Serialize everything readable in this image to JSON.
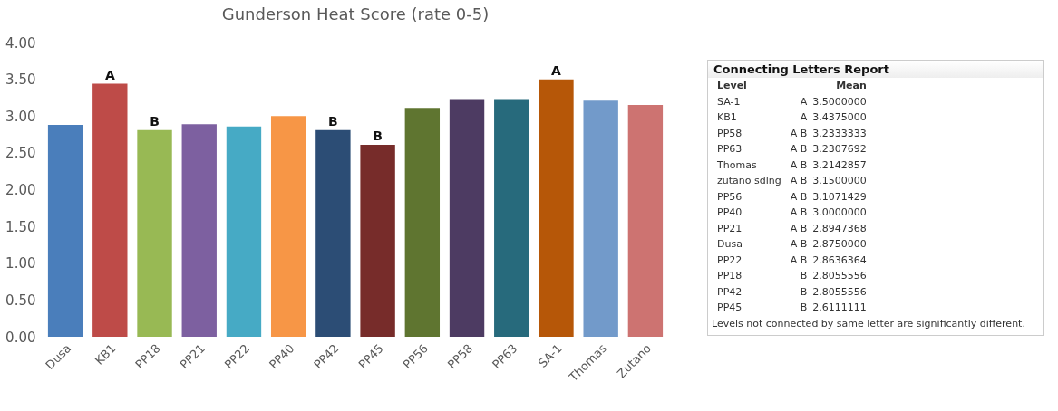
{
  "chart_data": [
    {
      "type": "bar",
      "title": "Gunderson Heat Score (rate 0-5)",
      "categories": [
        "Dusa",
        "KB1",
        "PP18",
        "PP21",
        "PP22",
        "PP40",
        "PP42",
        "PP45",
        "PP56",
        "PP58",
        "PP63",
        "SA-1",
        "Thomas",
        "Zutano"
      ],
      "values": [
        2.88,
        3.44,
        2.81,
        2.89,
        2.86,
        3.0,
        2.81,
        2.61,
        3.11,
        3.23,
        3.23,
        3.5,
        3.21,
        3.15
      ],
      "colors": [
        "#4a7ebb",
        "#be4b48",
        "#98b954",
        "#7d60a0",
        "#46aac5",
        "#f79646",
        "#2c4d75",
        "#772c2a",
        "#5f7530",
        "#4d3b62",
        "#276a7c",
        "#b65708",
        "#729aca",
        "#cd7371"
      ],
      "ylim": [
        0,
        4
      ],
      "yticks": [
        {
          "value": 0,
          "label": "0.00"
        },
        {
          "value": 0.5,
          "label": "0.50"
        },
        {
          "value": 1,
          "label": "1.00"
        },
        {
          "value": 1.5,
          "label": "1.50"
        },
        {
          "value": 2,
          "label": "2.00"
        },
        {
          "value": 2.5,
          "label": "2.50"
        },
        {
          "value": 3,
          "label": "3.00"
        },
        {
          "value": 3.5,
          "label": "3.50"
        },
        {
          "value": 4,
          "label": "4.00"
        }
      ],
      "grid": false,
      "annotations": [
        {
          "text": "A",
          "x": "KB1",
          "y": 3.44
        },
        {
          "text": "B",
          "x": "PP18",
          "y": 2.81
        },
        {
          "text": "B",
          "x": "PP42",
          "y": 2.81
        },
        {
          "text": "B",
          "x": "PP45",
          "y": 2.61
        },
        {
          "text": "A",
          "x": "SA-1",
          "y": 3.5
        }
      ]
    },
    {
      "type": "other",
      "title": "Connecting Letters Report",
      "xlabel": "Level",
      "ylabel": "Mean",
      "categories": [
        "SA-1",
        "KB1",
        "PP58",
        "PP63",
        "Thomas",
        "zutano sdlng",
        "PP56",
        "PP40",
        "PP21",
        "Dusa",
        "PP22",
        "PP18",
        "PP42",
        "PP45"
      ],
      "values": [
        3.5,
        3.4375,
        3.2333333,
        3.2307692,
        3.2142857,
        3.15,
        3.1071429,
        3,
        2.8947368,
        2.875,
        2.8636364,
        2.8055556,
        2.8055556,
        2.6111111
      ],
      "value_labels": [
        "3.5000000",
        "3.4375000",
        "3.2333333",
        "3.2307692",
        "3.2142857",
        "3.1500000",
        "3.1071429",
        "3.0000000",
        "2.8947368",
        "2.8750000",
        "2.8636364",
        "2.8055556",
        "2.8055556",
        "2.6111111"
      ],
      "annotations": [
        "A",
        "A",
        "A B",
        "A B",
        "A B",
        "A B",
        "A B",
        "A B",
        "A B",
        "A B",
        "A B",
        "B",
        "B",
        "B",
        "Levels not connected by same letter are significantly different."
      ]
    }
  ]
}
